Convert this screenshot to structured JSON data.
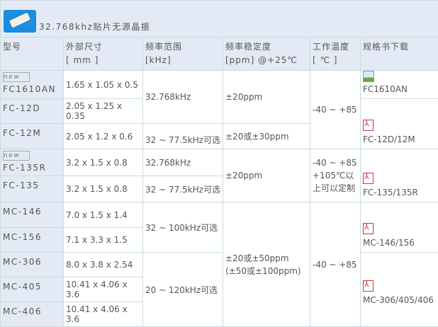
{
  "title": "32.768khz贴片无源晶振",
  "headers": [
    [
      "型号",
      ""
    ],
    [
      "外部尺寸",
      "[ mm ]"
    ],
    [
      "频率范围",
      "[kHz]"
    ],
    [
      "频率稳定度",
      "[ppm] @+25℃"
    ],
    [
      "工作温度",
      "[ ℃ ]"
    ],
    [
      "规格书下载",
      ""
    ]
  ],
  "broken_image_alt": "new",
  "rows": [
    {
      "model": "FC1610AN",
      "size": "1.65 x 1.05 x 0.5"
    },
    {
      "model": "FC-12D",
      "size": "2.05 x 1.25 x 0.35"
    },
    {
      "model": "FC-12M",
      "size": "2.05 x 1.2 x 0.6"
    },
    {
      "model": "FC-135R",
      "size": "3.2 x 1.5 x 0.8"
    },
    {
      "model": "FC-135",
      "size": "3.2 x 1.5 x 0.8"
    },
    {
      "model": "MC-146",
      "size": "7.0 x 1.5 x 1.4"
    },
    {
      "model": "MC-156",
      "size": "7.1 x 3.3 x 1.5"
    },
    {
      "model": "MC-306",
      "size": "8.0 x 3.8 x 2.54"
    },
    {
      "model": "MC-405",
      "size": "10.41 x 4.06 x 3.6"
    },
    {
      "model": "MC-406",
      "size": "10.41 x 4.06 x 3.6"
    }
  ],
  "freq": [
    "32.768kHz",
    "32 ~ 77.5kHz可选",
    "32.768kHz",
    "32 ~ 77.5kHz可选",
    "32 ~ 100kHz可选",
    "20 ~ 120kHz可选"
  ],
  "stability": [
    "±20ppm",
    "±20或±30ppm",
    "±20ppm",
    "±20或±50ppm",
    "(±50或±100ppm)"
  ],
  "temp": [
    "-40 ~ +85",
    "-40 ~ +85",
    "+105℃以上可以定制",
    "-40 ~ +85"
  ],
  "downloads": [
    {
      "label": "FC1610AN",
      "icon": "image-icon"
    },
    {
      "label": "FC-12D/12M",
      "icon": "pdf-icon"
    },
    {
      "label": "FC-135/135R",
      "icon": "pdf-icon"
    },
    {
      "label": "MC-146/156",
      "icon": "pdf-icon"
    },
    {
      "label": "MC-306/405/406",
      "icon": "pdf-icon"
    }
  ],
  "colors": {
    "header_bg": "#e3eaf5",
    "border": "#c8dcdb",
    "pdf": "#cc3333"
  }
}
